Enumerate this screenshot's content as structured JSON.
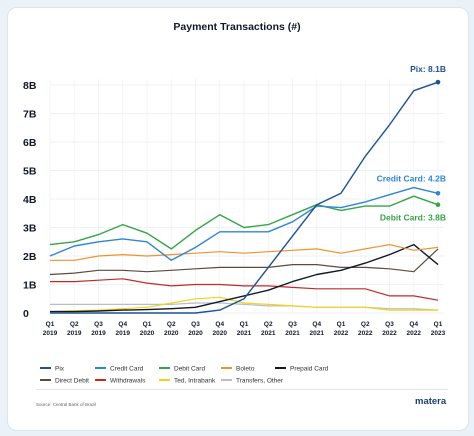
{
  "chart_data": {
    "type": "line",
    "title": "Payment Transactions (#)",
    "categories": [
      [
        "Q1",
        "2019"
      ],
      [
        "Q2",
        "2019"
      ],
      [
        "Q3",
        "2019"
      ],
      [
        "Q4",
        "2019"
      ],
      [
        "Q1",
        "2020"
      ],
      [
        "Q2",
        "2020"
      ],
      [
        "Q3",
        "2020"
      ],
      [
        "Q4",
        "2020"
      ],
      [
        "Q1",
        "2021"
      ],
      [
        "Q2",
        "2021"
      ],
      [
        "Q3",
        "2021"
      ],
      [
        "Q4",
        "2021"
      ],
      [
        "Q1",
        "2022"
      ],
      [
        "Q2",
        "2022"
      ],
      [
        "Q3",
        "2022"
      ],
      [
        "Q4",
        "2022"
      ],
      [
        "Q1",
        "2023"
      ]
    ],
    "yticks": [
      "0",
      "1B",
      "2B",
      "3B",
      "4B",
      "5B",
      "6B",
      "7B",
      "8B"
    ],
    "ylim": [
      0,
      8
    ],
    "y_unit": "billions",
    "grid": true,
    "series": [
      {
        "name": "Pix",
        "color": "#1a5296",
        "values": [
          0,
          0,
          0,
          0,
          0,
          0,
          0,
          0.1,
          0.5,
          1.6,
          2.7,
          3.8,
          4.2,
          5.5,
          6.6,
          7.8,
          8.1
        ],
        "end_marker": true
      },
      {
        "name": "Credit Card",
        "color": "#2f86d6",
        "values": [
          2.0,
          2.35,
          2.5,
          2.6,
          2.5,
          1.85,
          2.3,
          2.85,
          2.85,
          2.85,
          3.2,
          3.75,
          3.7,
          3.9,
          4.15,
          4.4,
          4.2
        ],
        "end_marker": true
      },
      {
        "name": "Debit Card",
        "color": "#35a546",
        "values": [
          2.4,
          2.5,
          2.75,
          3.1,
          2.8,
          2.25,
          2.9,
          3.45,
          3.0,
          3.1,
          3.45,
          3.8,
          3.6,
          3.75,
          3.75,
          4.1,
          3.8
        ],
        "end_marker": true
      },
      {
        "name": "Boleto",
        "color": "#f0922b",
        "values": [
          1.85,
          1.85,
          2.0,
          2.05,
          2.0,
          2.05,
          2.1,
          2.15,
          2.1,
          2.15,
          2.2,
          2.25,
          2.1,
          2.25,
          2.4,
          2.2,
          2.3
        ]
      },
      {
        "name": "Prepaid Card",
        "color": "#111827",
        "values": [
          0.05,
          0.05,
          0.07,
          0.1,
          0.12,
          0.15,
          0.2,
          0.4,
          0.6,
          0.8,
          1.1,
          1.35,
          1.5,
          1.75,
          2.05,
          2.4,
          1.7
        ]
      },
      {
        "name": "Direct Debit",
        "color": "#5e4a3f",
        "values": [
          1.35,
          1.4,
          1.5,
          1.5,
          1.45,
          1.5,
          1.55,
          1.6,
          1.6,
          1.6,
          1.7,
          1.7,
          1.6,
          1.6,
          1.55,
          1.45,
          2.25
        ]
      },
      {
        "name": "Withdrawals",
        "color": "#c62828",
        "values": [
          1.1,
          1.1,
          1.15,
          1.2,
          1.05,
          0.95,
          1.0,
          1.0,
          0.95,
          0.95,
          0.9,
          0.85,
          0.85,
          0.85,
          0.6,
          0.6,
          0.45
        ]
      },
      {
        "name": "Ted, Intrabank",
        "color": "#f2d21b",
        "values": [
          0.05,
          0.08,
          0.1,
          0.15,
          0.2,
          0.35,
          0.5,
          0.55,
          0.35,
          0.3,
          0.25,
          0.2,
          0.2,
          0.2,
          0.1,
          0.1,
          0.1
        ]
      },
      {
        "name": "Transfers, Other",
        "color": "#b9bec6",
        "values": [
          0.3,
          0.3,
          0.3,
          0.3,
          0.3,
          0.3,
          0.35,
          0.35,
          0.3,
          0.25,
          0.25,
          0.2,
          0.2,
          0.2,
          0.15,
          0.15,
          0.1
        ]
      }
    ],
    "end_labels": [
      {
        "series": "Pix",
        "text": "Pix: 8.1B",
        "color": "#1a5296"
      },
      {
        "series": "Credit Card",
        "text": "Credit Card: 4.2B",
        "color": "#2f86d6"
      },
      {
        "series": "Debit Card",
        "text": "Debit Card: 3.8B",
        "color": "#35a546"
      }
    ],
    "legend": {
      "placement": "bottom",
      "rows": [
        [
          "Pix",
          "Credit Card",
          "Debit Card",
          "Boleto",
          "Prepaid Card"
        ],
        [
          "Direct Debit",
          "Withdrawals",
          "Ted, Intrabank",
          "Transfers, Other"
        ]
      ]
    }
  },
  "footer": {
    "source": "Source: Central Bank of Brazil",
    "brand": "matera"
  }
}
